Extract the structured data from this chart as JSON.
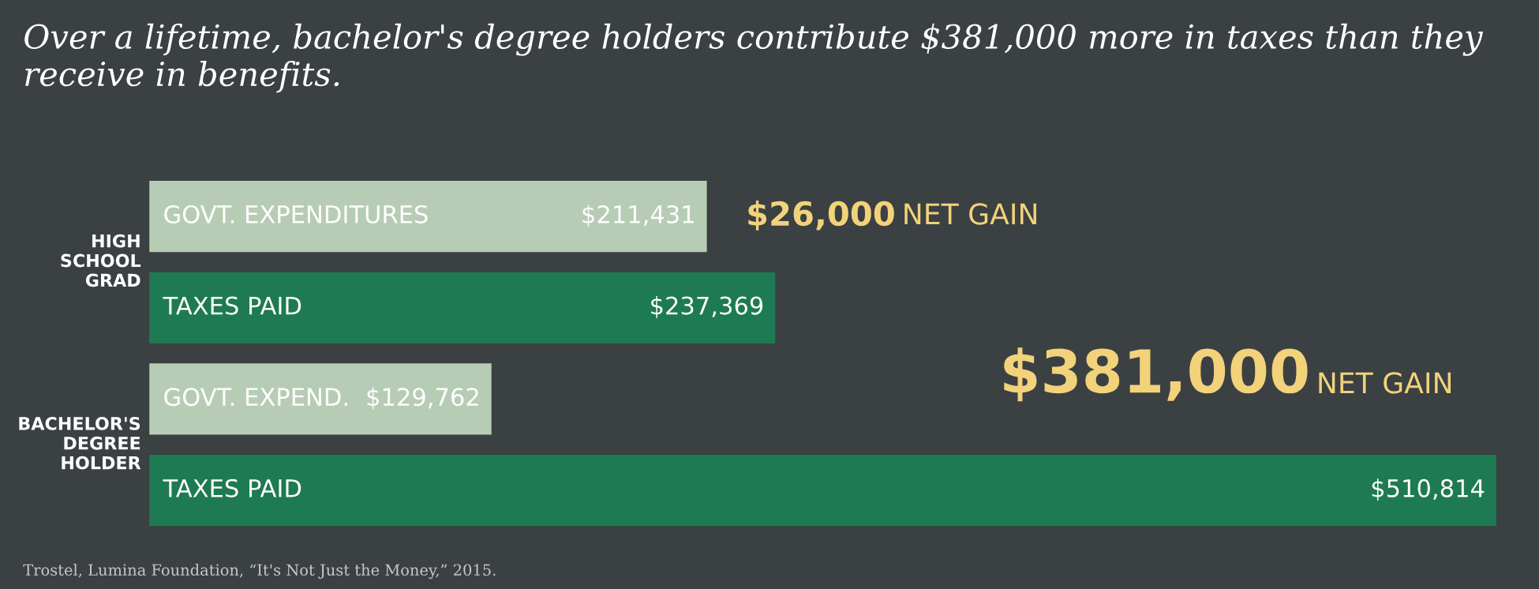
{
  "chart_data": {
    "type": "bar",
    "orientation": "horizontal",
    "title": "Over a lifetime, bachelor's degree holders contribute $381,000 more in taxes than they receive in benefits.",
    "categories": [
      "GOVT. EXPENDITURES",
      "TAXES PAID",
      "GOVT. EXPEND.",
      "TAXES PAID"
    ],
    "values": [
      211431,
      237369,
      129762,
      510814
    ],
    "colors": [
      "#b7ccb4",
      "#1e7a52",
      "#b7ccb4",
      "#1e7a52"
    ],
    "value_labels": [
      "$211,431",
      "$237,369",
      "$129,762",
      "$510,814"
    ],
    "annotations": [
      "HIGH SCHOOL GRAD",
      "BACHELOR'S DEGREE HOLDER",
      "$26,000 NET GAIN",
      "$381,000 NET GAIN",
      "Trostel, Lumina Foundation, “It's Not Just the Money,” 2015."
    ]
  }
}
